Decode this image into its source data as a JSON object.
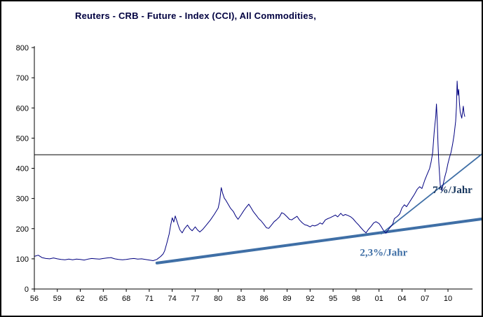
{
  "title_bar": {
    "title": "Reuters - CRB - Future - Index (CCI), All Commodities,"
  },
  "colors": {
    "series": "#000080",
    "trend": "#3f6fa6",
    "trend_label_dark": "#17365d",
    "trend_label_light": "#3f6fa6",
    "reference_line": "#000000",
    "axis": "#000000",
    "title": "#000040"
  },
  "chart_data": {
    "type": "line",
    "title": "Reuters - CRB - Future - Index (CCI), All Commodities,",
    "xlabel": "",
    "ylabel": "",
    "ylim": [
      0,
      800
    ],
    "x_range": [
      1956,
      2013.2
    ],
    "grid": false,
    "legend": "none",
    "y_ticks": [
      0,
      100,
      200,
      300,
      400,
      500,
      600,
      700,
      800
    ],
    "x_tick_years": [
      1956,
      1959,
      1962,
      1965,
      1968,
      1971,
      1974,
      1977,
      1980,
      1983,
      1986,
      1989,
      1992,
      1995,
      1998,
      2001,
      2004,
      2007,
      2010
    ],
    "x_tick_labels": [
      "56",
      "59",
      "62",
      "65",
      "68",
      "71",
      "74",
      "77",
      "80",
      "83",
      "86",
      "89",
      "92",
      "95",
      "98",
      "01",
      "04",
      "07",
      "10"
    ],
    "reference_line": {
      "value": 445,
      "color": "#000000",
      "width": 1
    },
    "trend_lines": [
      {
        "name": "trend-2.3-percent",
        "from": [
          1972.0,
          86
        ],
        "to": [
          2014.7,
          233
        ],
        "color": "#3f6fa6",
        "width": 4
      },
      {
        "name": "trend-7-percent",
        "from": [
          2001.3,
          183
        ],
        "to": [
          2014.7,
          452
        ],
        "color": "#3f6fa6",
        "width": 1.8
      }
    ],
    "annotations": [
      {
        "text": "7%/Jahr",
        "at": [
          2008.0,
          318
        ],
        "color": "#17365d"
      },
      {
        "text": "2,3%/Jahr",
        "at": [
          1998.5,
          110
        ],
        "color": "#3f6fa6"
      }
    ],
    "series": [
      {
        "name": "CRB Future Index (CCI)",
        "color": "#000080",
        "width": 1,
        "points": [
          [
            1956.0,
            108
          ],
          [
            1956.5,
            112
          ],
          [
            1957.0,
            104
          ],
          [
            1957.5,
            101
          ],
          [
            1958.0,
            100
          ],
          [
            1958.5,
            103
          ],
          [
            1959.0,
            100
          ],
          [
            1959.5,
            98
          ],
          [
            1960.0,
            97
          ],
          [
            1960.5,
            99
          ],
          [
            1961.0,
            97
          ],
          [
            1961.5,
            99
          ],
          [
            1962.0,
            98
          ],
          [
            1962.5,
            96
          ],
          [
            1963.0,
            99
          ],
          [
            1963.5,
            101
          ],
          [
            1964.0,
            100
          ],
          [
            1964.5,
            99
          ],
          [
            1965.0,
            101
          ],
          [
            1965.5,
            103
          ],
          [
            1966.0,
            104
          ],
          [
            1966.5,
            100
          ],
          [
            1967.0,
            98
          ],
          [
            1967.5,
            97
          ],
          [
            1968.0,
            98
          ],
          [
            1968.5,
            100
          ],
          [
            1969.0,
            101
          ],
          [
            1969.5,
            99
          ],
          [
            1970.0,
            100
          ],
          [
            1970.5,
            98
          ],
          [
            1971.0,
            96
          ],
          [
            1971.5,
            94
          ],
          [
            1972.0,
            98
          ],
          [
            1972.5,
            108
          ],
          [
            1972.8,
            116
          ],
          [
            1973.0,
            126
          ],
          [
            1973.3,
            152
          ],
          [
            1973.6,
            182
          ],
          [
            1973.8,
            212
          ],
          [
            1974.0,
            236
          ],
          [
            1974.2,
            222
          ],
          [
            1974.4,
            242
          ],
          [
            1974.6,
            226
          ],
          [
            1974.8,
            210
          ],
          [
            1975.0,
            196
          ],
          [
            1975.3,
            186
          ],
          [
            1975.6,
            200
          ],
          [
            1976.0,
            212
          ],
          [
            1976.3,
            200
          ],
          [
            1976.6,
            193
          ],
          [
            1977.0,
            206
          ],
          [
            1977.3,
            196
          ],
          [
            1977.6,
            189
          ],
          [
            1978.0,
            198
          ],
          [
            1978.5,
            213
          ],
          [
            1979.0,
            229
          ],
          [
            1979.5,
            248
          ],
          [
            1980.0,
            268
          ],
          [
            1980.2,
            292
          ],
          [
            1980.4,
            336
          ],
          [
            1980.6,
            316
          ],
          [
            1980.8,
            301
          ],
          [
            1981.0,
            294
          ],
          [
            1981.3,
            281
          ],
          [
            1981.6,
            268
          ],
          [
            1982.0,
            256
          ],
          [
            1982.3,
            241
          ],
          [
            1982.6,
            231
          ],
          [
            1983.0,
            246
          ],
          [
            1983.3,
            258
          ],
          [
            1983.6,
            269
          ],
          [
            1984.0,
            281
          ],
          [
            1984.3,
            269
          ],
          [
            1984.6,
            256
          ],
          [
            1985.0,
            243
          ],
          [
            1985.3,
            233
          ],
          [
            1985.6,
            226
          ],
          [
            1986.0,
            213
          ],
          [
            1986.3,
            203
          ],
          [
            1986.6,
            201
          ],
          [
            1987.0,
            213
          ],
          [
            1987.3,
            223
          ],
          [
            1987.6,
            229
          ],
          [
            1988.0,
            239
          ],
          [
            1988.3,
            253
          ],
          [
            1988.6,
            249
          ],
          [
            1989.0,
            239
          ],
          [
            1989.3,
            231
          ],
          [
            1989.6,
            229
          ],
          [
            1990.0,
            236
          ],
          [
            1990.3,
            241
          ],
          [
            1990.6,
            229
          ],
          [
            1991.0,
            219
          ],
          [
            1991.3,
            213
          ],
          [
            1991.6,
            211
          ],
          [
            1992.0,
            206
          ],
          [
            1992.3,
            211
          ],
          [
            1992.6,
            209
          ],
          [
            1993.0,
            213
          ],
          [
            1993.3,
            219
          ],
          [
            1993.6,
            215
          ],
          [
            1994.0,
            229
          ],
          [
            1994.3,
            233
          ],
          [
            1994.6,
            236
          ],
          [
            1995.0,
            241
          ],
          [
            1995.3,
            245
          ],
          [
            1995.6,
            239
          ],
          [
            1996.0,
            251
          ],
          [
            1996.3,
            243
          ],
          [
            1996.6,
            247
          ],
          [
            1997.0,
            243
          ],
          [
            1997.3,
            239
          ],
          [
            1997.6,
            233
          ],
          [
            1998.0,
            221
          ],
          [
            1998.3,
            213
          ],
          [
            1998.6,
            204
          ],
          [
            1999.0,
            193
          ],
          [
            1999.3,
            186
          ],
          [
            1999.6,
            197
          ],
          [
            2000.0,
            209
          ],
          [
            2000.3,
            219
          ],
          [
            2000.6,
            223
          ],
          [
            2001.0,
            217
          ],
          [
            2001.3,
            206
          ],
          [
            2001.6,
            193
          ],
          [
            2001.9,
            185
          ],
          [
            2002.2,
            196
          ],
          [
            2002.5,
            206
          ],
          [
            2002.8,
            216
          ],
          [
            2003.0,
            233
          ],
          [
            2003.4,
            241
          ],
          [
            2003.7,
            249
          ],
          [
            2004.0,
            269
          ],
          [
            2004.3,
            279
          ],
          [
            2004.6,
            273
          ],
          [
            2005.0,
            289
          ],
          [
            2005.3,
            301
          ],
          [
            2005.6,
            313
          ],
          [
            2006.0,
            331
          ],
          [
            2006.3,
            339
          ],
          [
            2006.6,
            333
          ],
          [
            2007.0,
            363
          ],
          [
            2007.3,
            381
          ],
          [
            2007.6,
            399
          ],
          [
            2007.8,
            421
          ],
          [
            2008.0,
            452
          ],
          [
            2008.2,
            521
          ],
          [
            2008.4,
            572
          ],
          [
            2008.5,
            613
          ],
          [
            2008.6,
            558
          ],
          [
            2008.7,
            482
          ],
          [
            2008.8,
            421
          ],
          [
            2009.0,
            342
          ],
          [
            2009.2,
            326
          ],
          [
            2009.4,
            351
          ],
          [
            2009.6,
            373
          ],
          [
            2009.8,
            391
          ],
          [
            2010.0,
            416
          ],
          [
            2010.2,
            436
          ],
          [
            2010.4,
            453
          ],
          [
            2010.6,
            479
          ],
          [
            2010.8,
            511
          ],
          [
            2011.0,
            556
          ],
          [
            2011.1,
            602
          ],
          [
            2011.2,
            689
          ],
          [
            2011.3,
            642
          ],
          [
            2011.4,
            661
          ],
          [
            2011.5,
            616
          ],
          [
            2011.6,
            586
          ],
          [
            2011.8,
            566
          ],
          [
            2012.0,
            606
          ],
          [
            2012.1,
            581
          ],
          [
            2012.2,
            571
          ]
        ]
      }
    ]
  }
}
